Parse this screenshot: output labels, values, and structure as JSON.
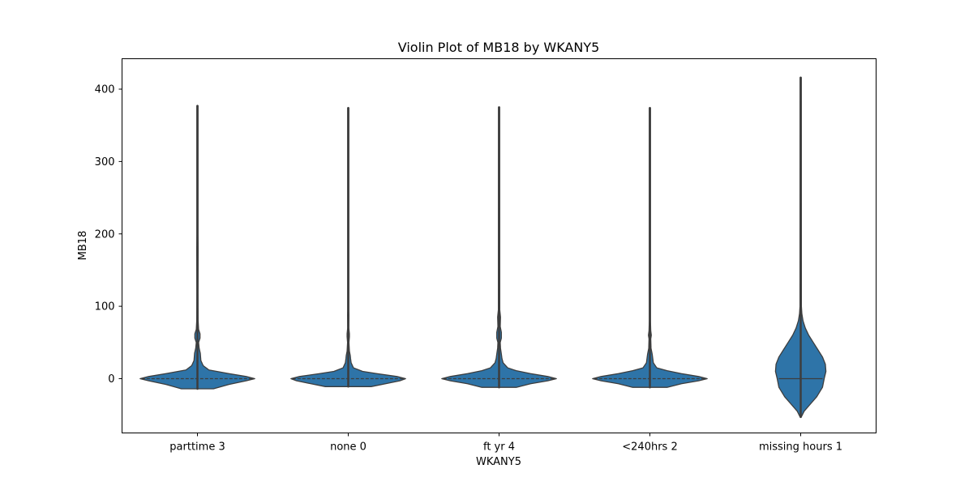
{
  "chart_data": {
    "type": "violin",
    "title": "Violin Plot of MB18 by WKANY5",
    "xlabel": "WKANY5",
    "ylabel": "MB18",
    "ylim": [
      -75,
      442
    ],
    "yticks": [
      0,
      100,
      200,
      300,
      400
    ],
    "fill_color": "#2e74a8",
    "categories": [
      "parttime 3",
      "none 0",
      "ft yr 4",
      "<240hrs 2",
      "missing hours 1"
    ],
    "violins": [
      {
        "category": "parttime 3",
        "range": [
          -14,
          377
        ],
        "median": 0,
        "profile": [
          [
            -14,
            0.28
          ],
          [
            -8,
            0.55
          ],
          [
            -3,
            0.85
          ],
          [
            0,
            1.0
          ],
          [
            3,
            0.85
          ],
          [
            7,
            0.55
          ],
          [
            12,
            0.2
          ],
          [
            18,
            0.1
          ],
          [
            25,
            0.06
          ],
          [
            35,
            0.05
          ],
          [
            42,
            0.03
          ],
          [
            50,
            0.02
          ],
          [
            56,
            0.045
          ],
          [
            62,
            0.045
          ],
          [
            68,
            0.02
          ],
          [
            80,
            0.012
          ],
          [
            120,
            0.01
          ],
          [
            175,
            0.012
          ],
          [
            180,
            0.012
          ],
          [
            200,
            0.01
          ],
          [
            377,
            0.01
          ]
        ]
      },
      {
        "category": "none 0",
        "range": [
          -11,
          374
        ],
        "median": 0,
        "profile": [
          [
            -11,
            0.4
          ],
          [
            -7,
            0.65
          ],
          [
            -3,
            0.9
          ],
          [
            0,
            1.0
          ],
          [
            3,
            0.85
          ],
          [
            7,
            0.5
          ],
          [
            10,
            0.25
          ],
          [
            15,
            0.09
          ],
          [
            22,
            0.05
          ],
          [
            28,
            0.04
          ],
          [
            32,
            0.035
          ],
          [
            38,
            0.02
          ],
          [
            50,
            0.012
          ],
          [
            58,
            0.02
          ],
          [
            62,
            0.02
          ],
          [
            70,
            0.01
          ],
          [
            88,
            0.012
          ],
          [
            95,
            0.01
          ],
          [
            374,
            0.01
          ]
        ]
      },
      {
        "category": "ft yr 4",
        "range": [
          -12,
          375
        ],
        "median": 0,
        "profile": [
          [
            -12,
            0.3
          ],
          [
            -7,
            0.55
          ],
          [
            -3,
            0.85
          ],
          [
            0,
            1.0
          ],
          [
            3,
            0.85
          ],
          [
            7,
            0.55
          ],
          [
            11,
            0.3
          ],
          [
            15,
            0.15
          ],
          [
            22,
            0.07
          ],
          [
            28,
            0.05
          ],
          [
            34,
            0.04
          ],
          [
            42,
            0.025
          ],
          [
            50,
            0.02
          ],
          [
            56,
            0.04
          ],
          [
            64,
            0.04
          ],
          [
            72,
            0.02
          ],
          [
            85,
            0.025
          ],
          [
            95,
            0.012
          ],
          [
            375,
            0.01
          ]
        ]
      },
      {
        "category": "<240hrs 2",
        "range": [
          -12,
          374
        ],
        "median": 0,
        "profile": [
          [
            -12,
            0.3
          ],
          [
            -7,
            0.55
          ],
          [
            -3,
            0.85
          ],
          [
            0,
            1.0
          ],
          [
            3,
            0.85
          ],
          [
            7,
            0.55
          ],
          [
            11,
            0.3
          ],
          [
            15,
            0.12
          ],
          [
            22,
            0.06
          ],
          [
            28,
            0.05
          ],
          [
            34,
            0.04
          ],
          [
            42,
            0.02
          ],
          [
            55,
            0.015
          ],
          [
            60,
            0.025
          ],
          [
            66,
            0.015
          ],
          [
            80,
            0.01
          ],
          [
            374,
            0.01
          ]
        ]
      },
      {
        "category": "missing hours 1",
        "range": [
          -53,
          416
        ],
        "median": 0,
        "profile": [
          [
            -53,
            0.01
          ],
          [
            -45,
            0.06
          ],
          [
            -35,
            0.17
          ],
          [
            -25,
            0.28
          ],
          [
            -12,
            0.38
          ],
          [
            0,
            0.41
          ],
          [
            10,
            0.44
          ],
          [
            20,
            0.43
          ],
          [
            30,
            0.38
          ],
          [
            40,
            0.3
          ],
          [
            50,
            0.22
          ],
          [
            60,
            0.14
          ],
          [
            70,
            0.08
          ],
          [
            80,
            0.04
          ],
          [
            90,
            0.02
          ],
          [
            100,
            0.012
          ],
          [
            416,
            0.01
          ]
        ]
      }
    ]
  }
}
